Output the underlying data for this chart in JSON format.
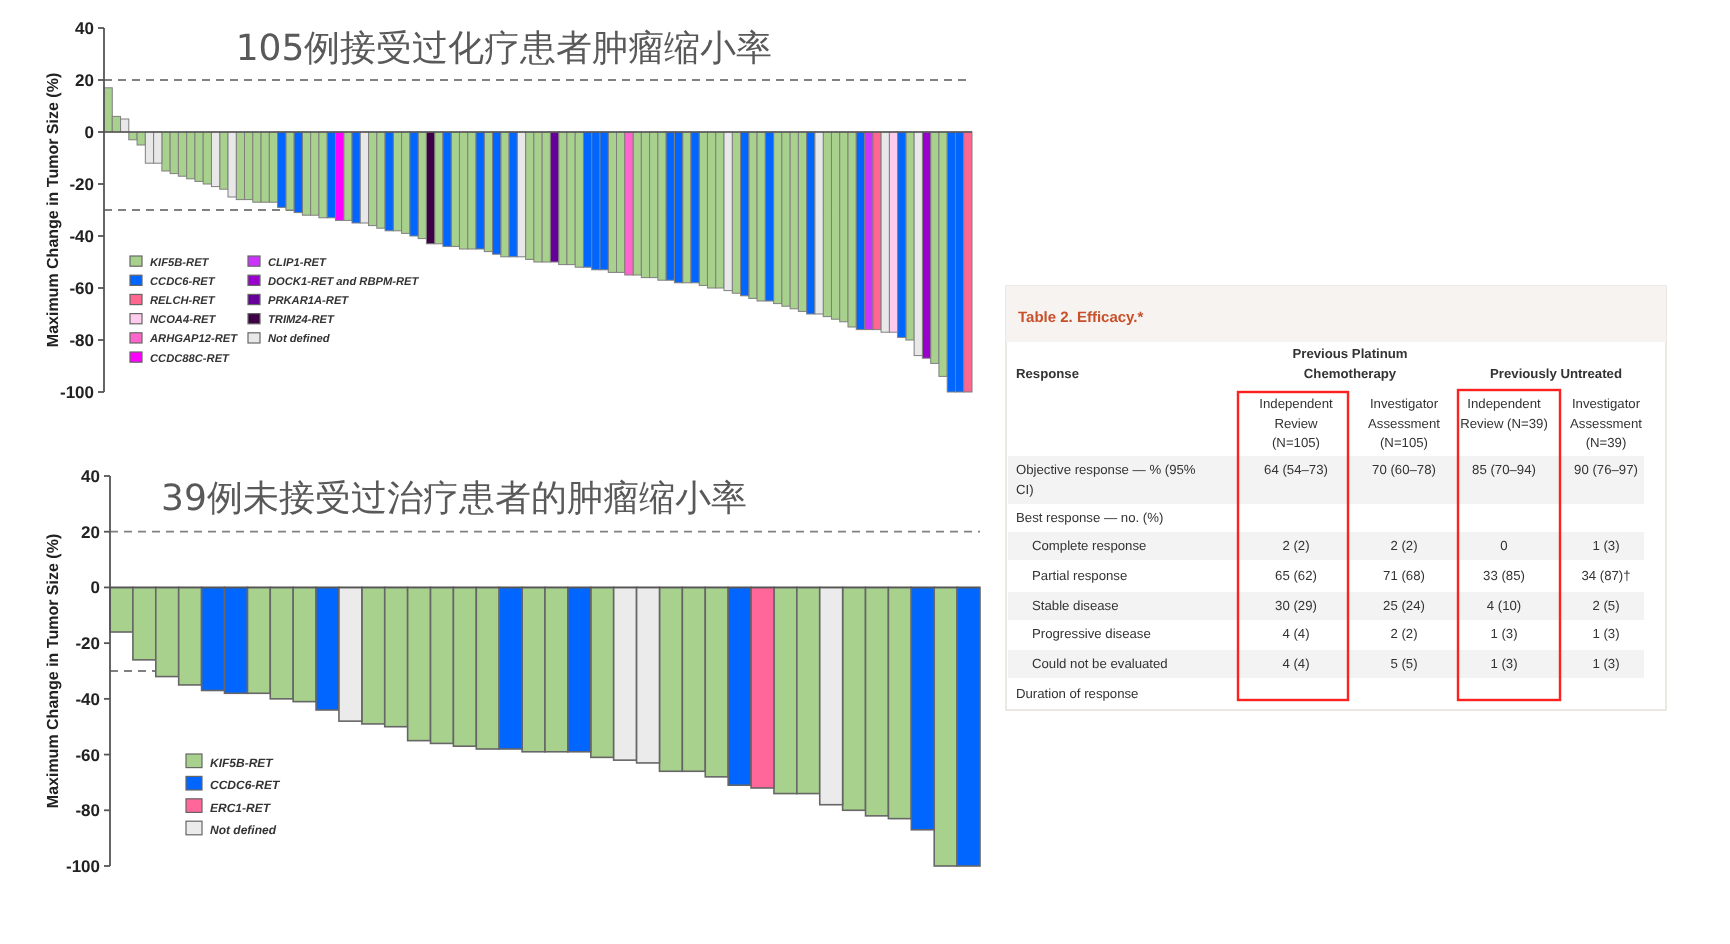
{
  "chart_data": [
    {
      "type": "bar",
      "title": "105例接受过化疗患者肿瘤缩小率",
      "ylabel": "Maximum Change in Tumor Size (%)",
      "categories": [
        null,
        null,
        null,
        null,
        null,
        null,
        null,
        null,
        null,
        null,
        null,
        null,
        null,
        null,
        null,
        null,
        null,
        null,
        null,
        null,
        null,
        null,
        null,
        null,
        null,
        null,
        null,
        null,
        null,
        null,
        null,
        null,
        null,
        null,
        null,
        null,
        null,
        null,
        null,
        null,
        null,
        null,
        null,
        null,
        null,
        null,
        null,
        null,
        null,
        null,
        null,
        null,
        null,
        null,
        null,
        null,
        null,
        null,
        null,
        null,
        null,
        null,
        null,
        null,
        null,
        null,
        null,
        null,
        null,
        null,
        null,
        null,
        null,
        null,
        null,
        null,
        null,
        null,
        null,
        null,
        null,
        null,
        null,
        null,
        null,
        null,
        null,
        null,
        null,
        null,
        null,
        null,
        null,
        null,
        null,
        null,
        null,
        null,
        null,
        null,
        null,
        null,
        null,
        null,
        null
      ],
      "ylim": [
        -100,
        40
      ],
      "yticks": [
        -100,
        -80,
        -60,
        -40,
        -20,
        0,
        20,
        40
      ],
      "ref_lines": [
        {
          "axis": "y",
          "value": 20,
          "line_style": "dashed",
          "color": "#808080"
        },
        {
          "axis": "y",
          "value": -30,
          "line_style": "dashed",
          "color": "#808080"
        }
      ],
      "legend": "bottom left",
      "series": [
        {
          "name": "KIF5B-RET",
          "color": "#a9d18e",
          "values": [
            17,
            6,
            null,
            -3,
            -5,
            null,
            null,
            -15,
            -16,
            -17,
            -18,
            -19,
            -20,
            null,
            -22,
            null,
            -26,
            -26,
            -27,
            -27,
            -27,
            null,
            -30,
            null,
            -32,
            -32,
            -33,
            null,
            null,
            -34,
            null,
            null,
            -36,
            -37,
            null,
            -38,
            -39,
            null,
            -41,
            null,
            -43,
            null,
            -44,
            -45,
            -45,
            null,
            -46,
            null,
            -48,
            null,
            null,
            -49,
            -50,
            -50,
            null,
            -51,
            -51,
            -52,
            null,
            null,
            null,
            -54,
            -54,
            null,
            -55,
            -56,
            -56,
            -57,
            null,
            null,
            -58,
            null,
            -59,
            -60,
            -60,
            null,
            -62,
            null,
            -64,
            -65,
            null,
            -66,
            -67,
            -68,
            -69,
            null,
            null,
            -71,
            -72,
            -73,
            -75,
            null,
            null,
            null,
            null,
            null,
            null,
            -80,
            null,
            null,
            -89,
            -94,
            null,
            null,
            null
          ]
        },
        {
          "name": "CCDC6-RET",
          "color": "#0066ff",
          "values": [
            null,
            null,
            null,
            null,
            null,
            null,
            null,
            null,
            null,
            null,
            null,
            null,
            null,
            null,
            null,
            null,
            null,
            null,
            null,
            null,
            null,
            -29,
            null,
            -31,
            null,
            null,
            null,
            -33,
            null,
            null,
            -35,
            null,
            null,
            null,
            -38,
            null,
            null,
            -40,
            null,
            null,
            null,
            -44,
            null,
            null,
            null,
            -45,
            null,
            -47,
            null,
            -48,
            null,
            null,
            null,
            null,
            null,
            null,
            null,
            null,
            -52,
            -53,
            -53,
            null,
            null,
            null,
            null,
            null,
            null,
            null,
            -57,
            -58,
            null,
            -58,
            null,
            null,
            null,
            null,
            null,
            -63,
            null,
            null,
            -65,
            null,
            null,
            null,
            null,
            -70,
            null,
            null,
            null,
            null,
            null,
            -76,
            null,
            null,
            null,
            null,
            -79,
            null,
            null,
            null,
            null,
            null,
            -100,
            -100,
            null
          ]
        },
        {
          "name": "RELCH-RET",
          "color": "#ff6690",
          "values": [
            null,
            null,
            null,
            null,
            null,
            null,
            null,
            null,
            null,
            null,
            null,
            null,
            null,
            null,
            null,
            null,
            null,
            null,
            null,
            null,
            null,
            null,
            null,
            null,
            null,
            null,
            null,
            null,
            null,
            null,
            null,
            null,
            null,
            null,
            null,
            null,
            null,
            null,
            null,
            null,
            null,
            null,
            null,
            null,
            null,
            null,
            null,
            null,
            null,
            null,
            null,
            null,
            null,
            null,
            null,
            null,
            null,
            null,
            null,
            null,
            null,
            null,
            null,
            null,
            null,
            null,
            null,
            null,
            null,
            null,
            null,
            null,
            null,
            null,
            null,
            null,
            null,
            null,
            null,
            null,
            null,
            null,
            null,
            null,
            null,
            null,
            null,
            null,
            null,
            null,
            null,
            null,
            null,
            -76,
            null,
            null,
            null,
            null,
            null,
            null,
            null,
            null,
            null,
            null,
            -100
          ]
        },
        {
          "name": "NCOA4-RET",
          "color": "#ffccee",
          "values": [
            null,
            null,
            null,
            null,
            null,
            null,
            null,
            null,
            null,
            null,
            null,
            null,
            null,
            null,
            null,
            null,
            null,
            null,
            null,
            null,
            null,
            null,
            null,
            null,
            null,
            null,
            null,
            null,
            null,
            null,
            null,
            null,
            null,
            null,
            null,
            null,
            null,
            null,
            null,
            null,
            null,
            null,
            null,
            null,
            null,
            null,
            null,
            null,
            null,
            null,
            null,
            null,
            null,
            null,
            null,
            null,
            null,
            null,
            null,
            null,
            null,
            null,
            null,
            null,
            null,
            null,
            null,
            null,
            null,
            null,
            null,
            null,
            null,
            null,
            null,
            null,
            null,
            null,
            null,
            null,
            null,
            null,
            null,
            null,
            null,
            null,
            null,
            null,
            null,
            null,
            null,
            null,
            null,
            null,
            null,
            -77,
            null,
            null,
            null,
            null,
            null,
            null,
            null,
            null,
            null
          ]
        },
        {
          "name": "ARHGAP12-RET",
          "color": "#ff66cc",
          "values": [
            null,
            null,
            null,
            null,
            null,
            null,
            null,
            null,
            null,
            null,
            null,
            null,
            null,
            null,
            null,
            null,
            null,
            null,
            null,
            null,
            null,
            null,
            null,
            null,
            null,
            null,
            null,
            null,
            null,
            null,
            null,
            null,
            null,
            null,
            null,
            null,
            null,
            null,
            null,
            null,
            null,
            null,
            null,
            null,
            null,
            null,
            null,
            null,
            null,
            null,
            null,
            null,
            null,
            null,
            null,
            null,
            null,
            null,
            null,
            null,
            null,
            null,
            null,
            -55,
            null,
            null,
            null,
            null,
            null,
            null,
            null,
            null,
            null,
            null,
            null,
            null,
            null,
            null,
            null,
            null,
            null,
            null,
            null,
            null,
            null,
            null,
            null,
            null,
            null,
            null,
            null,
            null,
            null,
            null,
            null,
            null,
            null,
            null,
            null,
            null,
            null,
            null,
            null,
            null,
            null
          ]
        },
        {
          "name": "CCDC88C-RET",
          "color": "#ff00ff",
          "values": [
            null,
            null,
            null,
            null,
            null,
            null,
            null,
            null,
            null,
            null,
            null,
            null,
            null,
            null,
            null,
            null,
            null,
            null,
            null,
            null,
            null,
            null,
            null,
            null,
            null,
            null,
            null,
            null,
            -34,
            null,
            null,
            null,
            null,
            null,
            null,
            null,
            null,
            null,
            null,
            null,
            null,
            null,
            null,
            null,
            null,
            null,
            null,
            null,
            null,
            null,
            null,
            null,
            null,
            null,
            null,
            null,
            null,
            null,
            null,
            null,
            null,
            null,
            null,
            null,
            null,
            null,
            null,
            null,
            null,
            null,
            null,
            null,
            null,
            null,
            null,
            null,
            null,
            null,
            null,
            null,
            null,
            null,
            null,
            null,
            null,
            null,
            null,
            null,
            null,
            null,
            null,
            null,
            null,
            null,
            null,
            null,
            null,
            null,
            null,
            null,
            null,
            null,
            null,
            null,
            null
          ]
        },
        {
          "name": "CLIP1-RET",
          "color": "#cc33ff",
          "values": [
            null,
            null,
            null,
            null,
            null,
            null,
            null,
            null,
            null,
            null,
            null,
            null,
            null,
            null,
            null,
            null,
            null,
            null,
            null,
            null,
            null,
            null,
            null,
            null,
            null,
            null,
            null,
            null,
            null,
            null,
            null,
            null,
            null,
            null,
            null,
            null,
            null,
            null,
            null,
            null,
            null,
            null,
            null,
            null,
            null,
            null,
            null,
            null,
            null,
            null,
            null,
            null,
            null,
            null,
            null,
            null,
            null,
            null,
            null,
            null,
            null,
            null,
            null,
            null,
            null,
            null,
            null,
            null,
            null,
            null,
            null,
            null,
            null,
            null,
            null,
            null,
            null,
            null,
            null,
            null,
            null,
            null,
            null,
            null,
            null,
            null,
            null,
            null,
            null,
            null,
            null,
            null,
            -76,
            null,
            null,
            null,
            null,
            null,
            null,
            null,
            null,
            null,
            null,
            null,
            null
          ]
        },
        {
          "name": "DOCK1-RET and RBPM-RET",
          "color": "#9900cc",
          "values": [
            null,
            null,
            null,
            null,
            null,
            null,
            null,
            null,
            null,
            null,
            null,
            null,
            null,
            null,
            null,
            null,
            null,
            null,
            null,
            null,
            null,
            null,
            null,
            null,
            null,
            null,
            null,
            null,
            null,
            null,
            null,
            null,
            null,
            null,
            null,
            null,
            null,
            null,
            null,
            null,
            null,
            null,
            null,
            null,
            null,
            null,
            null,
            null,
            null,
            null,
            null,
            null,
            null,
            null,
            null,
            null,
            null,
            null,
            null,
            null,
            null,
            null,
            null,
            null,
            null,
            null,
            null,
            null,
            null,
            null,
            null,
            null,
            null,
            null,
            null,
            null,
            null,
            null,
            null,
            null,
            null,
            null,
            null,
            null,
            null,
            null,
            null,
            null,
            null,
            null,
            null,
            null,
            null,
            null,
            null,
            null,
            null,
            null,
            null,
            -87,
            null,
            null,
            null,
            null,
            null
          ]
        },
        {
          "name": "PRKAR1A-RET",
          "color": "#660099",
          "values": [
            null,
            null,
            null,
            null,
            null,
            null,
            null,
            null,
            null,
            null,
            null,
            null,
            null,
            null,
            null,
            null,
            null,
            null,
            null,
            null,
            null,
            null,
            null,
            null,
            null,
            null,
            null,
            null,
            null,
            null,
            null,
            null,
            null,
            null,
            null,
            null,
            null,
            null,
            null,
            null,
            null,
            null,
            null,
            null,
            null,
            null,
            null,
            null,
            null,
            null,
            null,
            null,
            null,
            null,
            -50,
            null,
            null,
            null,
            null,
            null,
            null,
            null,
            null,
            null,
            null,
            null,
            null,
            null,
            null,
            null,
            null,
            null,
            null,
            null,
            null,
            null,
            null,
            null,
            null,
            null,
            null,
            null,
            null,
            null,
            null,
            null,
            null,
            null,
            null,
            null,
            null,
            null,
            null,
            null,
            null,
            null,
            null,
            null,
            null,
            null,
            null,
            null,
            null,
            null,
            null
          ]
        },
        {
          "name": "TRIM24-RET",
          "color": "#3d0045",
          "values": [
            null,
            null,
            null,
            null,
            null,
            null,
            null,
            null,
            null,
            null,
            null,
            null,
            null,
            null,
            null,
            null,
            null,
            null,
            null,
            null,
            null,
            null,
            null,
            null,
            null,
            null,
            null,
            null,
            null,
            null,
            null,
            null,
            null,
            null,
            null,
            null,
            null,
            null,
            null,
            -43,
            null,
            null,
            null,
            null,
            null,
            null,
            null,
            null,
            null,
            null,
            null,
            null,
            null,
            null,
            null,
            null,
            null,
            null,
            null,
            null,
            null,
            null,
            null,
            null,
            null,
            null,
            null,
            null,
            null,
            null,
            null,
            null,
            null,
            null,
            null,
            null,
            null,
            null,
            null,
            null,
            null,
            null,
            null,
            null,
            null,
            null,
            null,
            null,
            null,
            null,
            null,
            null,
            null,
            null,
            null,
            null,
            null,
            null,
            null,
            null,
            null,
            null,
            null,
            null,
            null
          ]
        },
        {
          "name": "Not defined",
          "color": "#e8e8e8",
          "values": [
            null,
            null,
            5,
            null,
            null,
            -12,
            -12,
            null,
            null,
            null,
            null,
            null,
            null,
            -21,
            null,
            -25,
            null,
            null,
            null,
            null,
            null,
            null,
            null,
            null,
            null,
            null,
            null,
            null,
            null,
            null,
            null,
            -35,
            null,
            null,
            null,
            null,
            null,
            null,
            null,
            null,
            null,
            null,
            null,
            null,
            null,
            null,
            null,
            null,
            null,
            null,
            -48,
            null,
            null,
            null,
            null,
            null,
            null,
            null,
            null,
            null,
            null,
            null,
            null,
            null,
            null,
            null,
            null,
            null,
            null,
            null,
            null,
            null,
            null,
            null,
            null,
            -61,
            null,
            null,
            null,
            null,
            null,
            null,
            null,
            null,
            null,
            null,
            -70,
            null,
            null,
            null,
            null,
            null,
            null,
            null,
            -77,
            null,
            null,
            null,
            -86,
            null,
            null,
            null,
            null,
            null,
            null
          ]
        }
      ]
    },
    {
      "type": "bar",
      "title": "39例未接受过治疗患者的肿瘤缩小率",
      "ylabel": "Maximum Change in Tumor Size (%)",
      "categories": [
        null,
        null,
        null,
        null,
        null,
        null,
        null,
        null,
        null,
        null,
        null,
        null,
        null,
        null,
        null,
        null,
        null,
        null,
        null,
        null,
        null,
        null,
        null,
        null,
        null,
        null,
        null,
        null,
        null,
        null,
        null,
        null,
        null,
        null,
        null,
        null,
        null,
        null
      ],
      "ylim": [
        -100,
        40
      ],
      "yticks": [
        -100,
        -80,
        -60,
        -40,
        -20,
        0,
        20,
        40
      ],
      "ref_lines": [
        {
          "axis": "y",
          "value": 20,
          "line_style": "dashed",
          "color": "#808080"
        },
        {
          "axis": "y",
          "value": -30,
          "line_style": "dashed",
          "color": "#808080"
        }
      ],
      "legend": "bottom left",
      "series": [
        {
          "name": "KIF5B-RET",
          "color": "#a9d18e",
          "values": [
            -16,
            -26,
            -32,
            -35,
            null,
            null,
            -38,
            -40,
            -41,
            null,
            null,
            -49,
            -50,
            -55,
            -56,
            -57,
            -58,
            null,
            -59,
            -59,
            null,
            -61,
            null,
            null,
            -66,
            -66,
            -68,
            null,
            null,
            -74,
            -74,
            null,
            -80,
            -82,
            -83,
            null,
            -100,
            null
          ]
        },
        {
          "name": "CCDC6-RET",
          "color": "#0066ff",
          "values": [
            null,
            null,
            null,
            null,
            -37,
            -38,
            null,
            null,
            null,
            -44,
            null,
            null,
            null,
            null,
            null,
            null,
            null,
            -58,
            null,
            null,
            -59,
            null,
            null,
            null,
            null,
            null,
            null,
            -71,
            null,
            null,
            null,
            null,
            null,
            null,
            null,
            -87,
            null,
            -100
          ]
        },
        {
          "name": "ERC1-RET",
          "color": "#ff6699",
          "values": [
            null,
            null,
            null,
            null,
            null,
            null,
            null,
            null,
            null,
            null,
            null,
            null,
            null,
            null,
            null,
            null,
            null,
            null,
            null,
            null,
            null,
            null,
            null,
            null,
            null,
            null,
            null,
            null,
            -72,
            null,
            null,
            null,
            null,
            null,
            null,
            null,
            null,
            null
          ]
        },
        {
          "name": "Not defined",
          "color": "#ebebeb",
          "values": [
            null,
            null,
            null,
            null,
            null,
            null,
            null,
            null,
            null,
            null,
            -48,
            null,
            null,
            null,
            null,
            null,
            null,
            null,
            null,
            null,
            null,
            null,
            -62,
            -63,
            null,
            null,
            null,
            null,
            null,
            null,
            null,
            -78,
            null,
            null,
            null,
            null,
            null,
            null
          ]
        }
      ]
    },
    {
      "type": "other",
      "title": "Table 2. Efficacy.*",
      "annotations": [
        "Response",
        "Previous Platinum Chemotherapy",
        "Previously Untreated",
        "Independent Review (N=105)",
        "Investigator Assessment (N=105)",
        "Independent Review (N=39)",
        "Investigator Assessment (N=39)",
        "Objective response — % (95% CI)",
        "64 (54–73)",
        "70 (60–78)",
        "85 (70–94)",
        "90 (76–97)",
        "Best response — no. (%)",
        "Complete response",
        "2 (2)",
        "2 (2)",
        "0",
        "1 (3)",
        "Partial response",
        "65 (62)",
        "71 (68)",
        "33 (85)",
        "34 (87)†",
        "Stable disease",
        "30 (29)",
        "25 (24)",
        "4 (10)",
        "2 (5)",
        "Progressive disease",
        "4 (4)",
        "2 (2)",
        "1 (3)",
        "1 (3)",
        "Could not be evaluated",
        "4 (4)",
        "5 (5)",
        "1 (3)",
        "1 (3)",
        "Duration of response"
      ]
    }
  ]
}
